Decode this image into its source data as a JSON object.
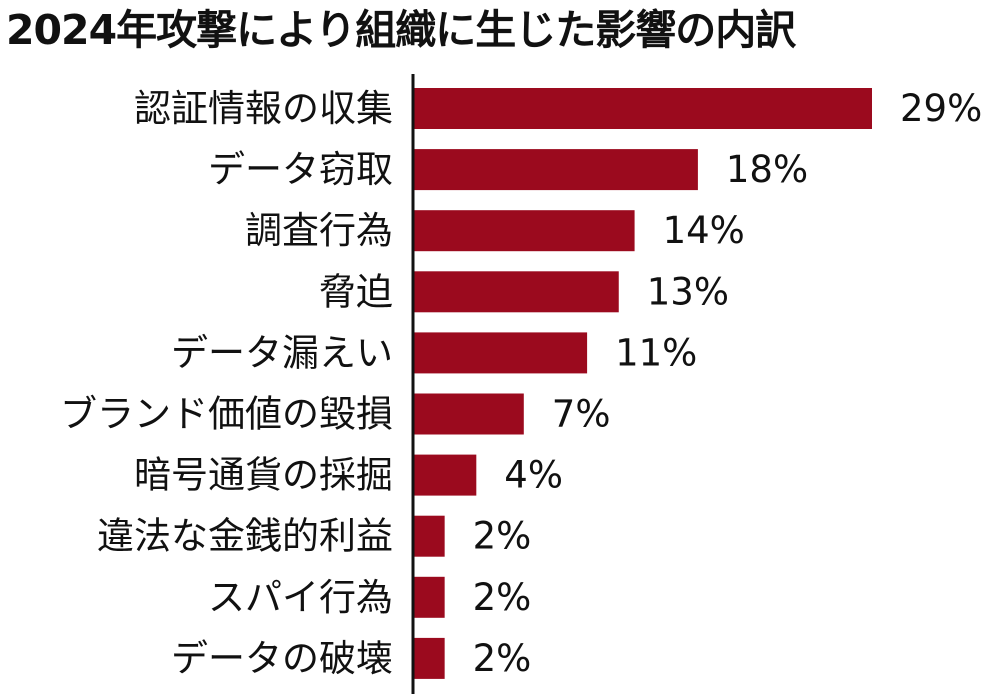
{
  "chart_data": {
    "type": "bar",
    "orientation": "horizontal",
    "title": "2024年攻撃により組織に生じた影響の内訳",
    "categories": [
      "認証情報の収集",
      "データ窃取",
      "調査行為",
      "脅迫",
      "データ漏えい",
      "ブランド価値の毀損",
      "暗号通貨の採掘",
      "違法な金銭的利益",
      "スパイ行為",
      "データの破壊"
    ],
    "values": [
      29,
      18,
      14,
      13,
      11,
      7,
      4,
      2,
      2,
      2
    ],
    "value_labels": [
      "29%",
      "18%",
      "14%",
      "13%",
      "11%",
      "7%",
      "4%",
      "2%",
      "2%",
      "2%"
    ],
    "unit": "%",
    "bar_color": "#9b0a1e",
    "grid": false,
    "legend": "none"
  }
}
